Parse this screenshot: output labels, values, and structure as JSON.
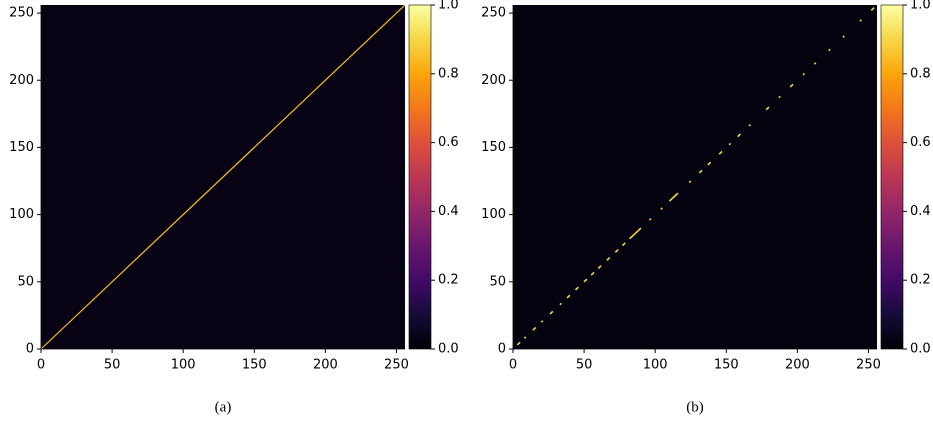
{
  "chart_data": [
    {
      "type": "heatmap",
      "caption": "(a)",
      "xlim": [
        0,
        256
      ],
      "ylim": [
        0,
        256
      ],
      "xticks": [
        0,
        50,
        100,
        150,
        200,
        250
      ],
      "yticks": [
        0,
        50,
        100,
        150,
        200,
        250
      ],
      "background_value": 0.03,
      "diagonal_value": 0.85,
      "clim": [
        0,
        1
      ],
      "cticks": [
        {
          "value": 0,
          "label": "0.0"
        },
        {
          "value": 0.2,
          "label": "0.2"
        },
        {
          "value": 0.4,
          "label": "0.4"
        },
        {
          "value": 0.6,
          "label": "0.6"
        },
        {
          "value": 0.8,
          "label": "0.8"
        },
        {
          "value": 1,
          "label": "1.0"
        }
      ],
      "colormap": [
        "#000004",
        "#160b39",
        "#420a68",
        "#6a176e",
        "#932667",
        "#bc3754",
        "#dd513a",
        "#f37819",
        "#fca50a",
        "#f6d746",
        "#fcffa4"
      ]
    },
    {
      "type": "heatmap",
      "caption": "(b)",
      "xlim": [
        0,
        256
      ],
      "ylim": [
        0,
        256
      ],
      "xticks": [
        0,
        50,
        100,
        150,
        200,
        250
      ],
      "yticks": [
        0,
        50,
        100,
        150,
        200,
        250
      ],
      "background_value": 0.02,
      "diagonal_value": 0.9,
      "diagonal_segments": [
        [
          3,
          5
        ],
        [
          8,
          9
        ],
        [
          14,
          16
        ],
        [
          20,
          21
        ],
        [
          26,
          28
        ],
        [
          33,
          34
        ],
        [
          38,
          40
        ],
        [
          44,
          46
        ],
        [
          50,
          52
        ],
        [
          55,
          57
        ],
        [
          60,
          62
        ],
        [
          66,
          68
        ],
        [
          72,
          74
        ],
        [
          77,
          79
        ],
        [
          82,
          90
        ],
        [
          96,
          97
        ],
        [
          104,
          105
        ],
        [
          110,
          116
        ],
        [
          124,
          125
        ],
        [
          131,
          133
        ],
        [
          137,
          139
        ],
        [
          145,
          147
        ],
        [
          152,
          153
        ],
        [
          158,
          160
        ],
        [
          166,
          167
        ],
        [
          178,
          180
        ],
        [
          187,
          188
        ],
        [
          195,
          197
        ],
        [
          204,
          205
        ],
        [
          212,
          213
        ],
        [
          222,
          223
        ],
        [
          232,
          233
        ],
        [
          244,
          245
        ],
        [
          252,
          254
        ]
      ],
      "clim": [
        0,
        1
      ],
      "cticks": [
        {
          "value": 0,
          "label": "0.0"
        },
        {
          "value": 0.2,
          "label": "0.2"
        },
        {
          "value": 0.4,
          "label": "0.4"
        },
        {
          "value": 0.6,
          "label": "0.6"
        },
        {
          "value": 0.8,
          "label": "0.8"
        },
        {
          "value": 1,
          "label": "1.0"
        }
      ],
      "colormap": [
        "#000004",
        "#160b39",
        "#420a68",
        "#6a176e",
        "#932667",
        "#bc3754",
        "#dd513a",
        "#f37819",
        "#fca50a",
        "#f6d746",
        "#fcffa4"
      ]
    }
  ]
}
